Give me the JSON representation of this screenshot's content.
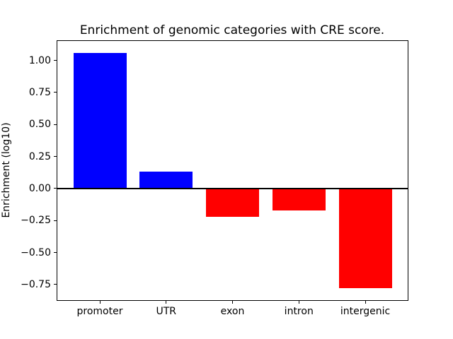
{
  "chart_data": {
    "type": "bar",
    "title": "Enrichment of genomic categories with CRE score.",
    "ylabel": "Enrichment (log10)",
    "xlabel": "",
    "categories": [
      "promoter",
      "UTR",
      "exon",
      "intron",
      "intergenic"
    ],
    "values": [
      1.06,
      0.13,
      -0.22,
      -0.17,
      -0.78
    ],
    "bar_colors": [
      "#0000ff",
      "#0000ff",
      "#ff0000",
      "#ff0000",
      "#ff0000"
    ],
    "positive_color": "#0000ff",
    "negative_color": "#ff0000",
    "ylim": [
      -0.872,
      1.152
    ],
    "xlim": [
      -0.64,
      4.64
    ],
    "bar_width": 0.8,
    "yticks": [
      1.0,
      0.75,
      0.5,
      0.25,
      0.0,
      -0.25,
      -0.5,
      -0.75
    ],
    "ytick_labels": [
      "1.00",
      "0.75",
      "0.50",
      "0.25",
      "0.00",
      "−0.25",
      "−0.50",
      "−0.75"
    ],
    "zero_line": {
      "show": true,
      "color": "#000000"
    },
    "grid": false,
    "legend": false,
    "axis_color": "#000000",
    "text_color": "#000000",
    "background_color": "#ffffff"
  }
}
